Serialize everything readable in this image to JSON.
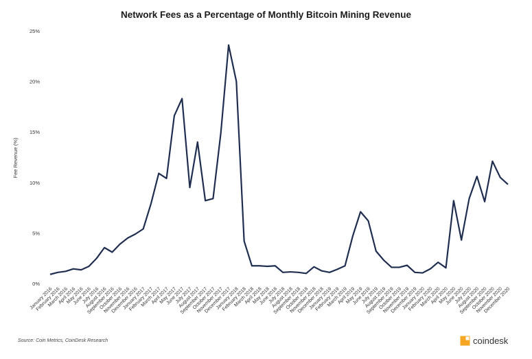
{
  "chart_data": {
    "type": "line",
    "title": "Network Fees as a Percentage of Monthly Bitcoin Mining Revenue",
    "xlabel": "",
    "ylabel": "Fee Revenue (%)",
    "ylim": [
      0,
      25
    ],
    "yticks": [
      "0%",
      "5%",
      "10%",
      "15%",
      "20%",
      "25%"
    ],
    "ytick_values": [
      0,
      5,
      10,
      15,
      20,
      25
    ],
    "grid": false,
    "color": "#1f2d4f",
    "categories": [
      "January 2016",
      "February 2016",
      "March 2016",
      "April 2016",
      "May 2016",
      "June 2016",
      "July 2016",
      "August 2016",
      "September 2016",
      "October 2016",
      "November 2016",
      "December 2016",
      "January 2017",
      "February 2017",
      "March 2017",
      "April 2017",
      "May 2017",
      "June 2017",
      "July 2017",
      "August 2017",
      "September 2017",
      "October 2017",
      "November 2017",
      "December 2017",
      "January 2018",
      "February 2018",
      "March 2018",
      "April 2018",
      "May 2018",
      "June 2018",
      "July 2018",
      "August 2018",
      "September 2018",
      "October 2018",
      "November 2018",
      "December 2018",
      "January 2019",
      "February 2019",
      "March 2019",
      "April 2019",
      "May 2019",
      "June 2019",
      "July 2019",
      "August 2019",
      "September 2019",
      "October 2019",
      "November 2019",
      "December 2019",
      "January 2020",
      "February 2020",
      "March 2020",
      "April 2020",
      "May 2020",
      "June 2020",
      "July 2020",
      "August 2020",
      "September 2020",
      "October 2020",
      "November 2020",
      "December 2020"
    ],
    "values": [
      0.9,
      1.1,
      1.2,
      1.45,
      1.35,
      1.7,
      2.5,
      3.55,
      3.1,
      3.9,
      4.5,
      4.9,
      5.4,
      7.9,
      10.9,
      10.4,
      16.6,
      18.3,
      9.5,
      14.0,
      8.2,
      8.4,
      14.9,
      23.6,
      20.0,
      4.2,
      1.75,
      1.75,
      1.7,
      1.75,
      1.1,
      1.15,
      1.1,
      1.0,
      1.65,
      1.25,
      1.1,
      1.4,
      1.75,
      4.7,
      7.1,
      6.2,
      3.2,
      2.3,
      1.6,
      1.6,
      1.8,
      1.1,
      1.05,
      1.45,
      2.1,
      1.55,
      8.2,
      4.3,
      8.4,
      10.6,
      8.1,
      12.1,
      10.5,
      9.8
    ]
  },
  "source": "Source: Coin Metrics, CoinDesk Research",
  "brand": {
    "name": "coindesk",
    "color": "#f5a623"
  }
}
